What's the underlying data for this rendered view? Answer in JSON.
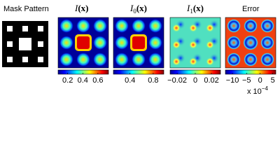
{
  "panels": [
    {
      "title": "Mask Pattern"
    },
    {
      "title_main": "I",
      "title_arg": "(x)",
      "ticks": [
        "0.2",
        "0.4",
        "0.6"
      ]
    },
    {
      "title_main": "I",
      "title_sub": "0",
      "title_arg": "(x)",
      "ticks": [
        "0.4",
        "0.8"
      ]
    },
    {
      "title_main": "I",
      "title_sub": "1",
      "title_arg": "(x)",
      "ticks": [
        "−0.02",
        "0",
        "0.02"
      ]
    },
    {
      "title": "Error",
      "ticks": [
        "−10",
        "−5",
        "0",
        "5"
      ],
      "multiplier": "x 10",
      "exponent": "−4"
    }
  ]
}
